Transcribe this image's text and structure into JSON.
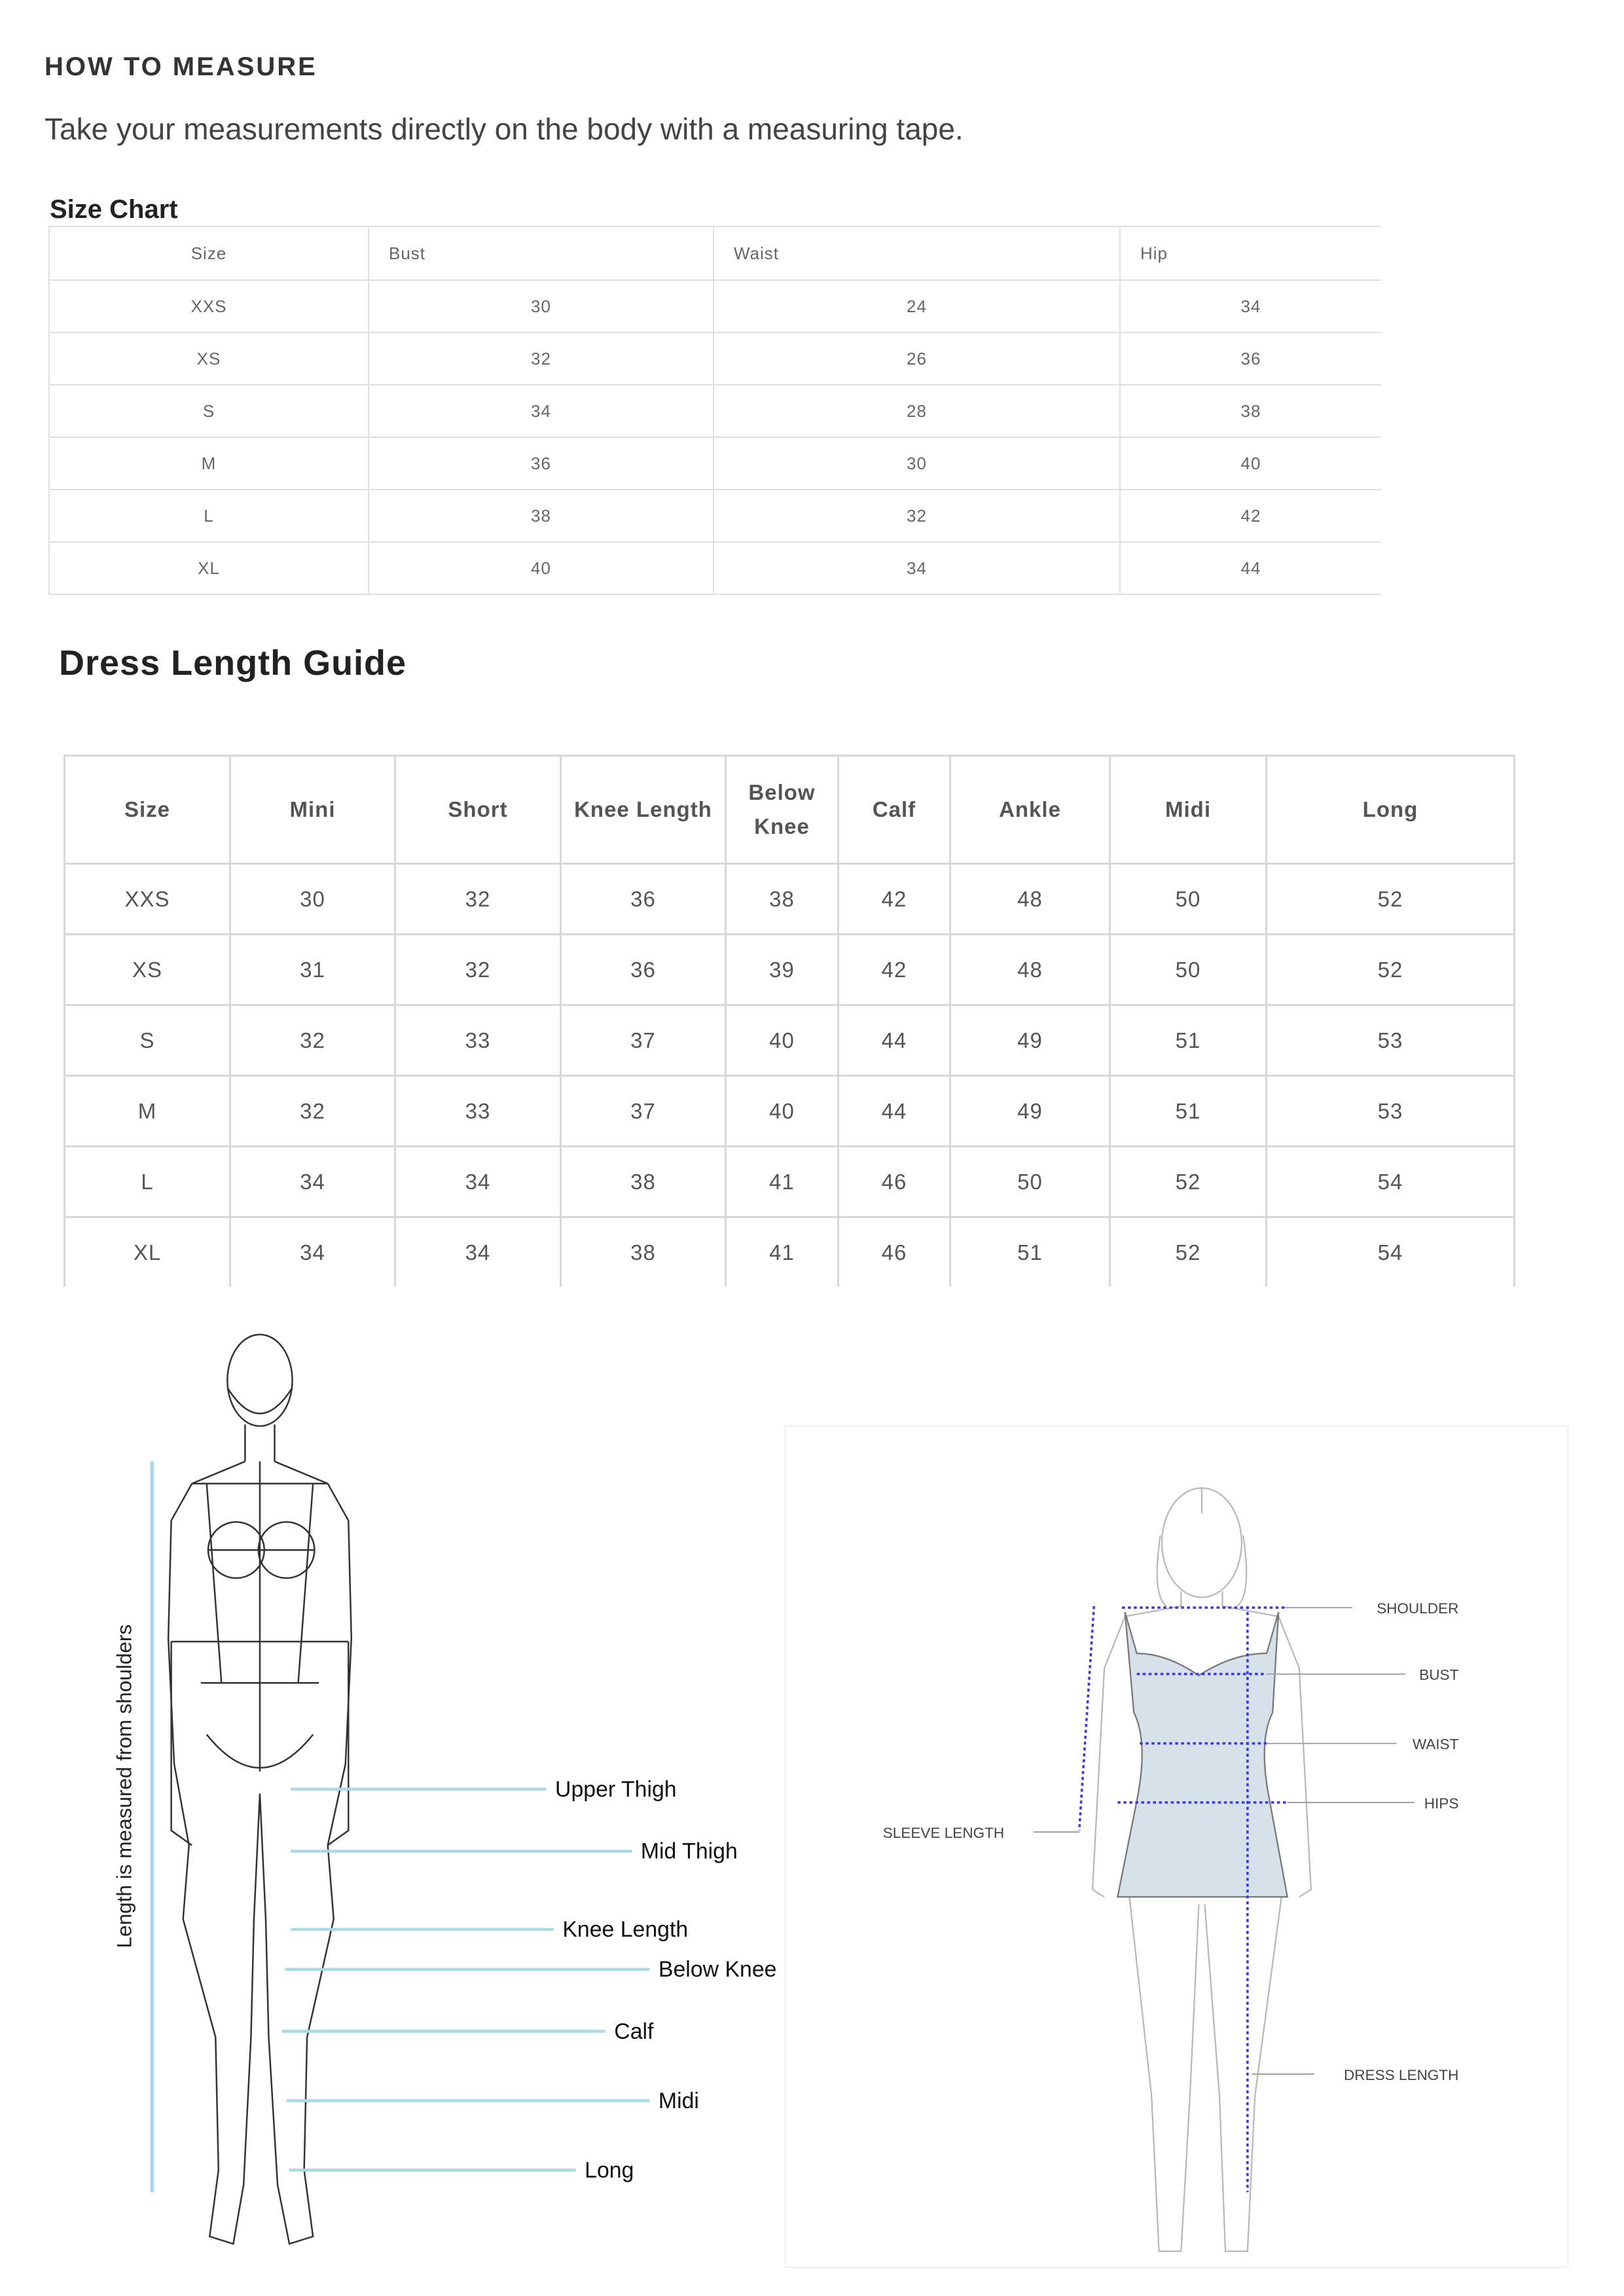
{
  "header": {
    "title": "HOW TO MEASURE",
    "subtitle": "Take your measurements directly on the body with a measuring tape."
  },
  "size_chart": {
    "title": "Size Chart",
    "columns": [
      "Size",
      "Bust",
      "Waist",
      "Hip"
    ],
    "rows": [
      [
        "XXS",
        "30",
        "24",
        "34"
      ],
      [
        "XS",
        "32",
        "26",
        "36"
      ],
      [
        "S",
        "34",
        "28",
        "38"
      ],
      [
        "M",
        "36",
        "30",
        "40"
      ],
      [
        "L",
        "38",
        "32",
        "42"
      ],
      [
        "XL",
        "40",
        "34",
        "44"
      ]
    ]
  },
  "dress_length": {
    "title": "Dress Length Guide",
    "columns": [
      "Size",
      "Mini",
      "Short",
      "Knee Length",
      "Below Knee",
      "Calf",
      "Ankle",
      "Midi",
      "Long"
    ],
    "rows": [
      [
        "XXS",
        "30",
        "32",
        "36",
        "38",
        "42",
        "48",
        "50",
        "52"
      ],
      [
        "XS",
        "31",
        "32",
        "36",
        "39",
        "42",
        "48",
        "50",
        "52"
      ],
      [
        "S",
        "32",
        "33",
        "37",
        "40",
        "44",
        "49",
        "51",
        "53"
      ],
      [
        "M",
        "32",
        "33",
        "37",
        "40",
        "44",
        "49",
        "51",
        "53"
      ],
      [
        "L",
        "34",
        "34",
        "38",
        "41",
        "46",
        "50",
        "52",
        "54"
      ],
      [
        "XL",
        "34",
        "34",
        "38",
        "41",
        "46",
        "51",
        "52",
        "54"
      ]
    ]
  },
  "length_figure": {
    "axis_label": "Length is measured from shoulders",
    "labels": [
      "Upper Thigh",
      "Mid Thigh",
      "Knee Length",
      "Below Knee",
      "Calf",
      "Midi",
      "Long"
    ],
    "line_color": "#a9d8e6"
  },
  "body_figure": {
    "labels": {
      "shoulder": "SHOULDER",
      "bust": "BUST",
      "waist": "WAIST",
      "hips": "HIPS",
      "sleeve": "SLEEVE LENGTH",
      "dress": "DRESS LENGTH"
    },
    "dress_color": "#d6e1ea",
    "measure_color": "#3a3ae0"
  }
}
